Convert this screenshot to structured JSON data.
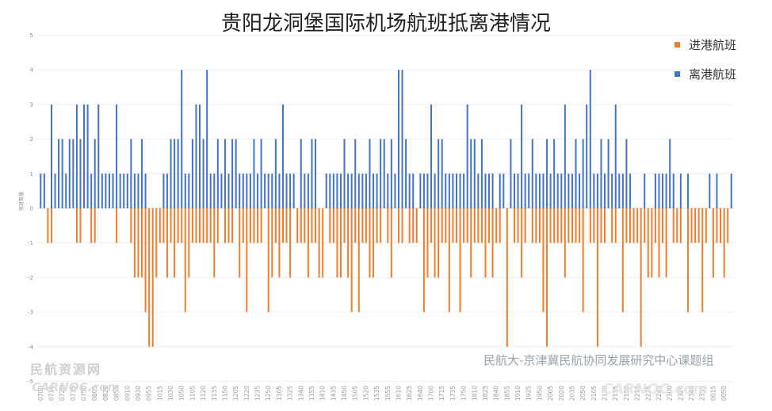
{
  "chart_data": {
    "type": "bar",
    "title": "贵阳龙洞堡国际机场航班抵离港情况",
    "xlabel": "",
    "ylabel": "航班数量",
    "ylim": [
      -5,
      5
    ],
    "yticks": [
      5,
      4,
      3,
      2,
      1,
      0,
      -1,
      -2,
      -3,
      -4,
      -5
    ],
    "grid": true,
    "legend_position": "top-right",
    "x_tick_label_every": 3,
    "x_tick_labels": [
      "0700",
      "0710",
      "0720",
      "0735",
      "0750",
      "0805",
      "0825",
      "0855",
      "0910",
      "0930",
      "0955",
      "1015",
      "1030",
      "1050",
      "1105",
      "1120",
      "1135",
      "1150",
      "1205",
      "1220",
      "1235",
      "1250",
      "1305",
      "1325",
      "1340",
      "1355",
      "1410",
      "1435",
      "1450",
      "1505",
      "1520",
      "1535",
      "1555",
      "1610",
      "1625",
      "1640",
      "1700",
      "1715",
      "1735",
      "1750",
      "1810",
      "1825",
      "1840",
      "1855",
      "1910",
      "1925",
      "1950",
      "2005",
      "2020",
      "2035",
      "2050",
      "2105",
      "2120",
      "2135",
      "2150",
      "2210",
      "2225",
      "2245",
      "2300",
      "2320",
      "2340",
      "2355",
      "0015",
      "0050"
    ],
    "series": [
      {
        "name": "进港航班",
        "color": "#ED7D31",
        "values": [
          0,
          0,
          -1,
          -1,
          0,
          0,
          0,
          0,
          0,
          0,
          -1,
          -1,
          0,
          0,
          -1,
          -1,
          0,
          0,
          0,
          0,
          0,
          -1,
          0,
          0,
          0,
          -1,
          -2,
          -2,
          -2,
          -3,
          -4,
          -4,
          -2,
          -1,
          -1,
          -2,
          -1,
          -2,
          -1,
          -1,
          -3,
          -2,
          -1,
          -1,
          -1,
          -1,
          -1,
          -1,
          -2,
          -1,
          0,
          -1,
          -1,
          -1,
          0,
          -2,
          -1,
          -3,
          -1,
          -1,
          -1,
          -1,
          0,
          -3,
          -2,
          -1,
          -2,
          -1,
          -1,
          -2,
          0,
          -1,
          -1,
          -1,
          -2,
          -1,
          -1,
          -2,
          -2,
          0,
          -1,
          -1,
          -2,
          -2,
          -1,
          -2,
          -3,
          -1,
          -3,
          -1,
          -1,
          -2,
          -2,
          -1,
          -1,
          0,
          -1,
          -2,
          0,
          -1,
          -1,
          0,
          -1,
          -1,
          -1,
          0,
          -3,
          -2,
          -1,
          -2,
          -2,
          -1,
          -1,
          -3,
          -1,
          -1,
          -3,
          -1,
          -1,
          -2,
          -1,
          -1,
          -1,
          -2,
          -1,
          -2,
          -1,
          -1,
          0,
          -4,
          0,
          -1,
          -1,
          -2,
          -1,
          0,
          -1,
          -1,
          -1,
          -3,
          -4,
          -1,
          -1,
          -1,
          -1,
          -2,
          -1,
          -1,
          -1,
          -1,
          -3,
          0,
          -1,
          -1,
          -4,
          -1,
          -1,
          0,
          -1,
          -1,
          0,
          -3,
          -1,
          -1,
          -1,
          -1,
          -4,
          -1,
          -2,
          -2,
          -1,
          -2,
          -1,
          -2,
          0,
          -1,
          -1,
          -1,
          0,
          -3,
          -1,
          -1,
          -1,
          -3,
          -1,
          0,
          -2,
          -1,
          -1,
          -2,
          -1,
          0
        ]
      },
      {
        "name": "离港航班",
        "color": "#4472C4",
        "values": [
          1,
          1,
          0,
          3,
          1,
          2,
          2,
          1,
          2,
          2,
          3,
          2,
          3,
          3,
          1,
          2,
          3,
          1,
          1,
          1,
          1,
          3,
          1,
          1,
          1,
          2,
          1,
          1,
          2,
          1,
          0,
          0,
          0,
          0,
          1,
          1,
          2,
          2,
          2,
          4,
          1,
          1,
          2,
          3,
          3,
          2,
          4,
          1,
          1,
          2,
          1,
          2,
          1,
          2,
          2,
          1,
          1,
          1,
          1,
          2,
          1,
          2,
          1,
          1,
          1,
          2,
          1,
          3,
          1,
          1,
          1,
          0,
          2,
          1,
          1,
          2,
          2,
          0,
          0,
          1,
          1,
          1,
          1,
          1,
          2,
          1,
          1,
          2,
          1,
          1,
          1,
          2,
          1,
          1,
          2,
          2,
          1,
          2,
          1,
          4,
          4,
          2,
          1,
          1,
          0,
          1,
          1,
          1,
          3,
          1,
          2,
          2,
          1,
          1,
          1,
          1,
          1,
          1,
          3,
          2,
          2,
          1,
          2,
          1,
          1,
          1,
          0,
          1,
          1,
          0,
          2,
          1,
          1,
          3,
          1,
          1,
          2,
          1,
          1,
          1,
          2,
          1,
          2,
          1,
          1,
          3,
          1,
          1,
          2,
          1,
          2,
          3,
          4,
          1,
          1,
          2,
          1,
          2,
          1,
          3,
          1,
          1,
          2,
          1,
          0,
          0,
          0,
          1,
          0,
          0,
          1,
          1,
          1,
          1,
          2,
          1,
          0,
          1,
          0,
          1,
          0,
          0,
          0,
          0,
          0,
          1,
          0,
          1,
          0,
          0,
          0,
          1
        ]
      }
    ]
  },
  "watermarks": {
    "credit": "民航大-京津冀民航协同发展研究中心课题组",
    "site_cn": "民航资源网",
    "site_en": "CARNOC.com"
  }
}
